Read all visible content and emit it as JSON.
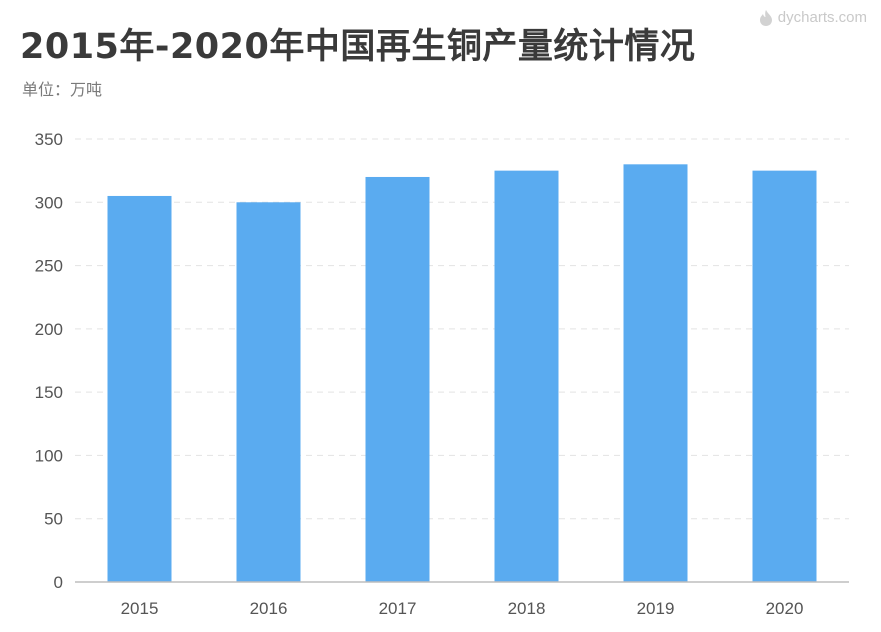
{
  "header": {
    "title": "2015年-2020年中国再生铜产量统计情况",
    "unit": "单位：万吨",
    "watermark": "dycharts.com"
  },
  "colors": {
    "bar": "#5aabf0",
    "grid": "#e3e3e3",
    "axis": "#bdbdbd"
  },
  "chart_data": {
    "type": "bar",
    "title": "2015年-2020年中国再生铜产量统计情况",
    "ylabel": "单位：万吨",
    "categories": [
      "2015",
      "2016",
      "2017",
      "2018",
      "2019",
      "2020"
    ],
    "values": [
      305,
      300,
      320,
      325,
      330,
      325
    ],
    "ylim": [
      0,
      350
    ],
    "yticks": [
      0,
      50,
      100,
      150,
      200,
      250,
      300,
      350
    ],
    "grid": true,
    "legend": "none"
  }
}
